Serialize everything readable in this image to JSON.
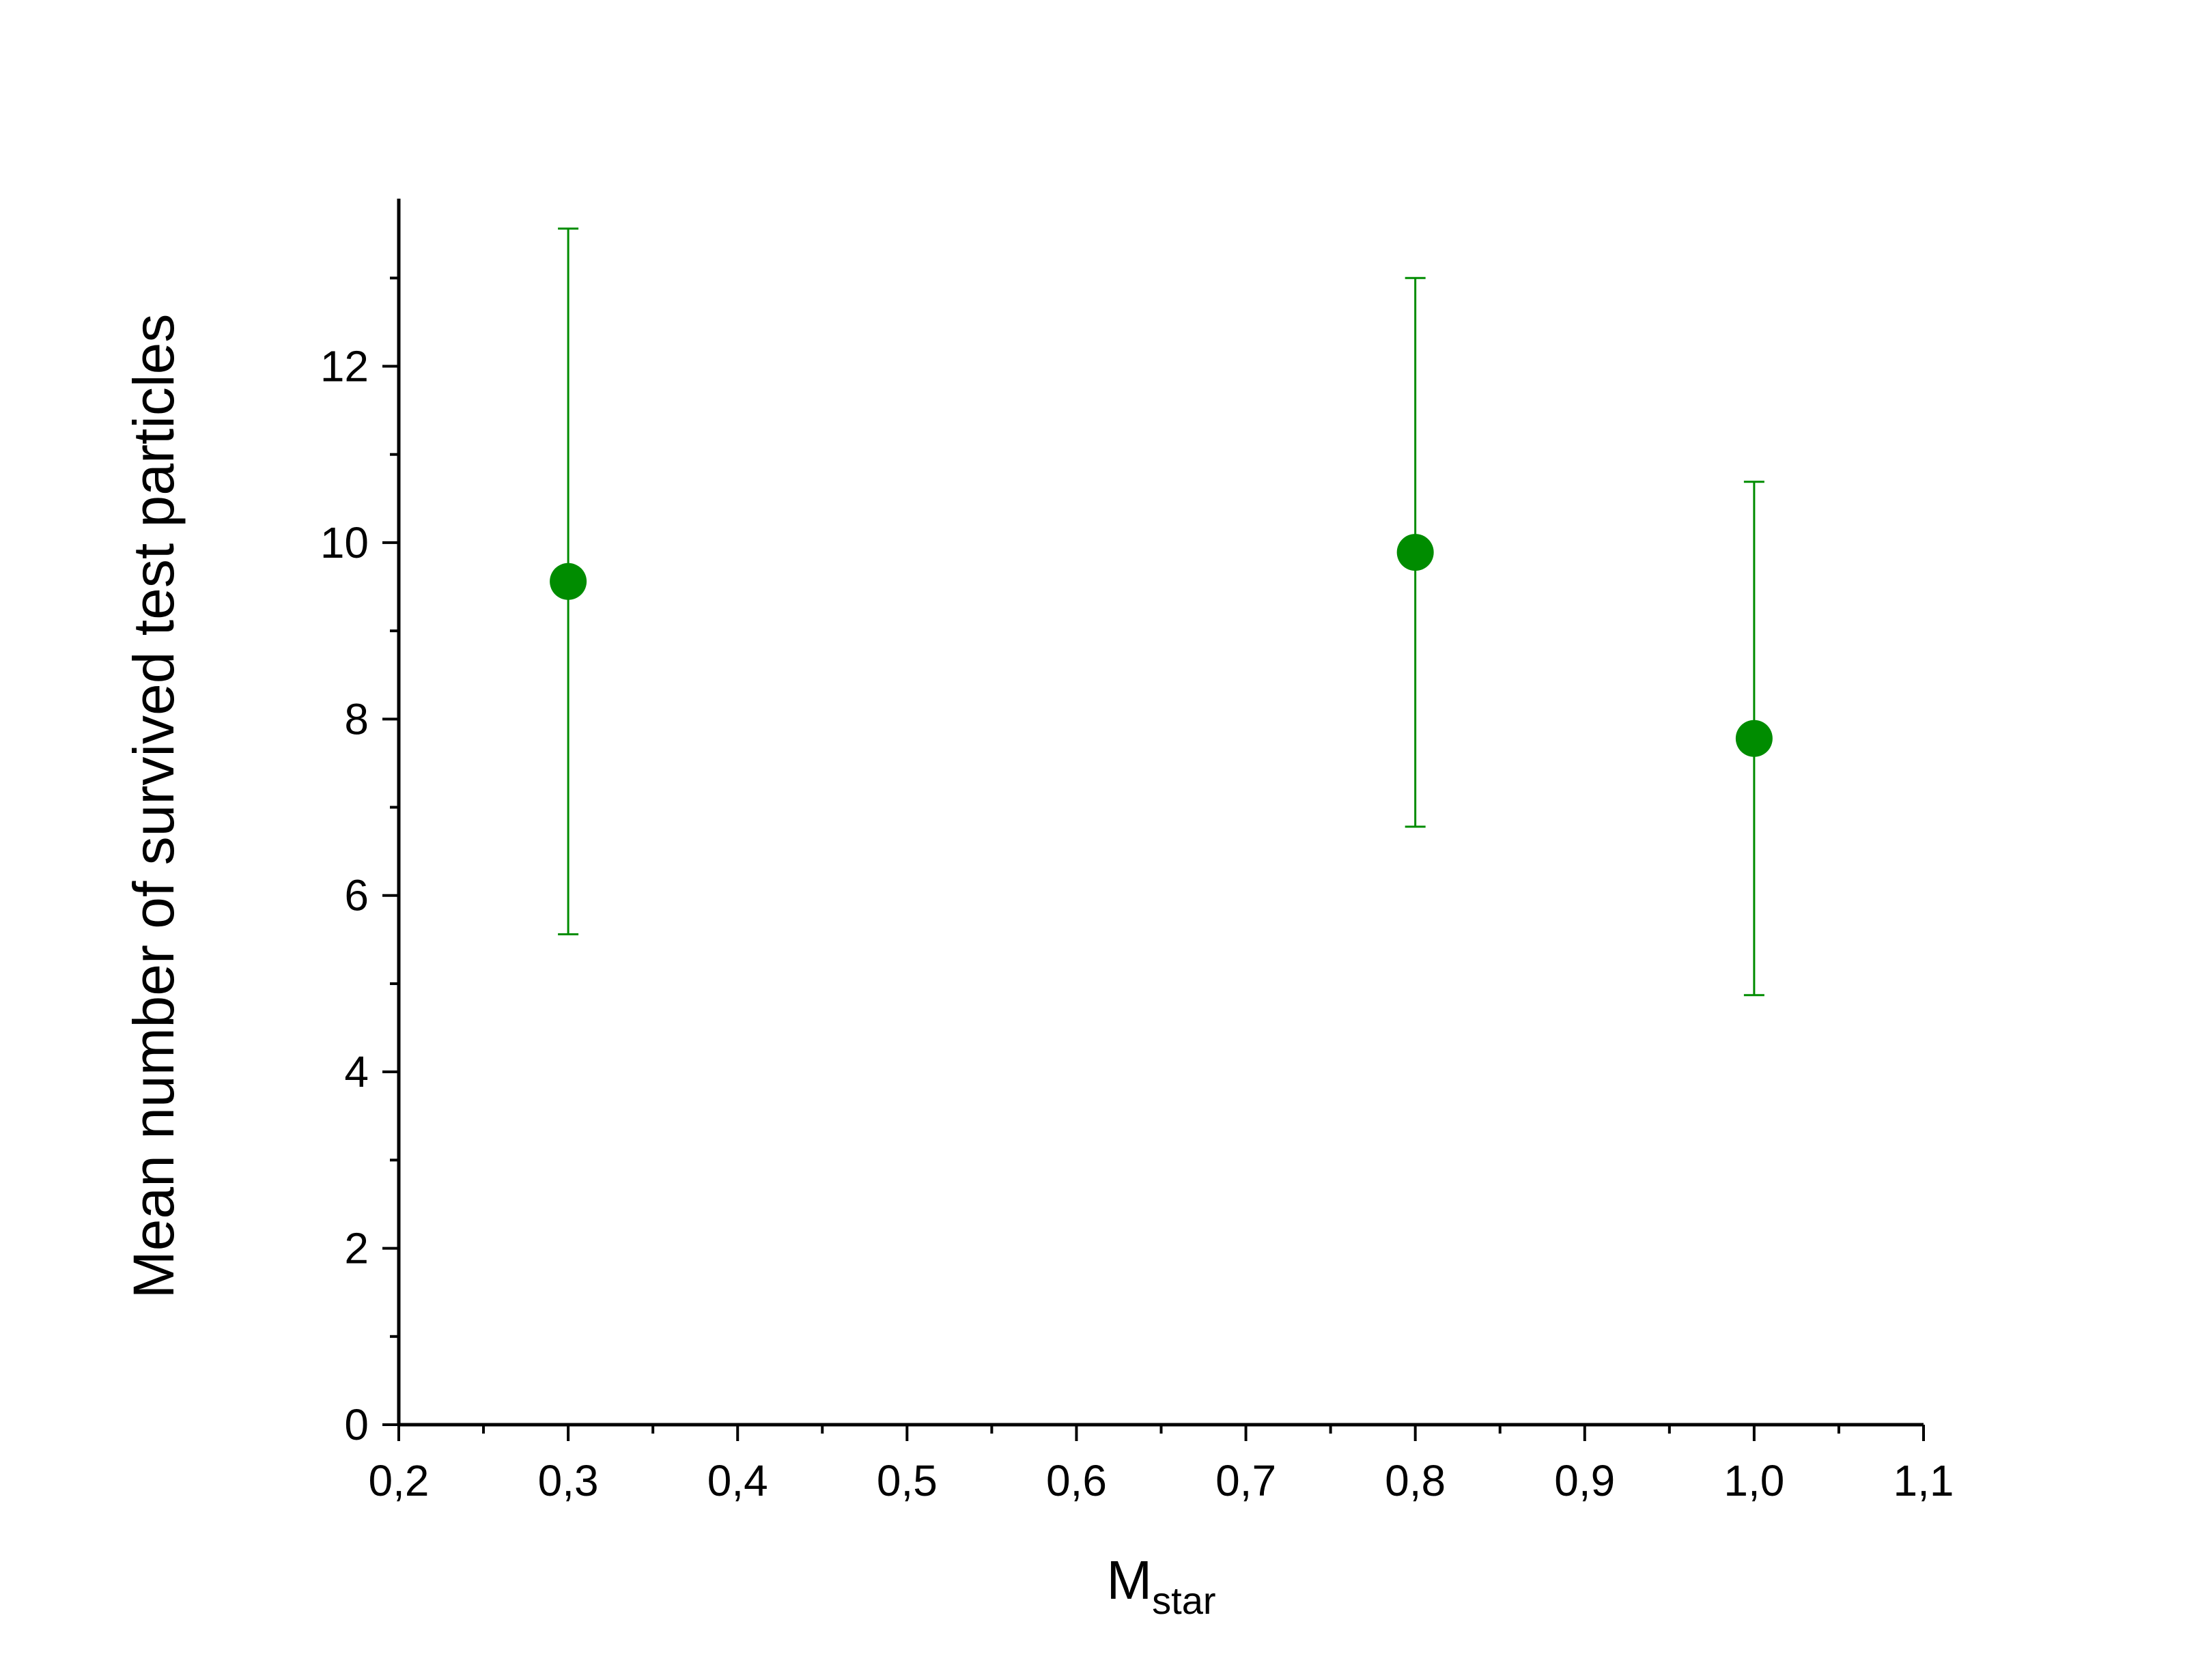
{
  "chart_data": {
    "type": "scatter",
    "title": "",
    "xlabel": "M",
    "xlabel_subscript": "star",
    "ylabel": "Mean number of survived test particles",
    "xlim": [
      0.2,
      1.1
    ],
    "ylim": [
      0,
      13.9
    ],
    "x_ticks": [
      0.2,
      0.3,
      0.4,
      0.5,
      0.6,
      0.7,
      0.8,
      0.9,
      1.0,
      1.1
    ],
    "x_tick_labels": [
      "0,2",
      "0,3",
      "0,4",
      "0,5",
      "0,6",
      "0,7",
      "0,8",
      "0,9",
      "1,0",
      "1,1"
    ],
    "y_ticks": [
      0,
      2,
      4,
      6,
      8,
      10,
      12
    ],
    "y_tick_labels": [
      "0",
      "2",
      "4",
      "6",
      "8",
      "10",
      "12"
    ],
    "grid": false,
    "legend": "none",
    "series": [
      {
        "color": "#008c00",
        "points": [
          {
            "x": 0.3,
            "y": 9.56,
            "y_low": 5.56,
            "y_high": 13.56
          },
          {
            "x": 0.8,
            "y": 9.89,
            "y_low": 6.78,
            "y_high": 13.0
          },
          {
            "x": 1.0,
            "y": 7.78,
            "y_low": 4.87,
            "y_high": 10.69
          }
        ]
      }
    ]
  }
}
